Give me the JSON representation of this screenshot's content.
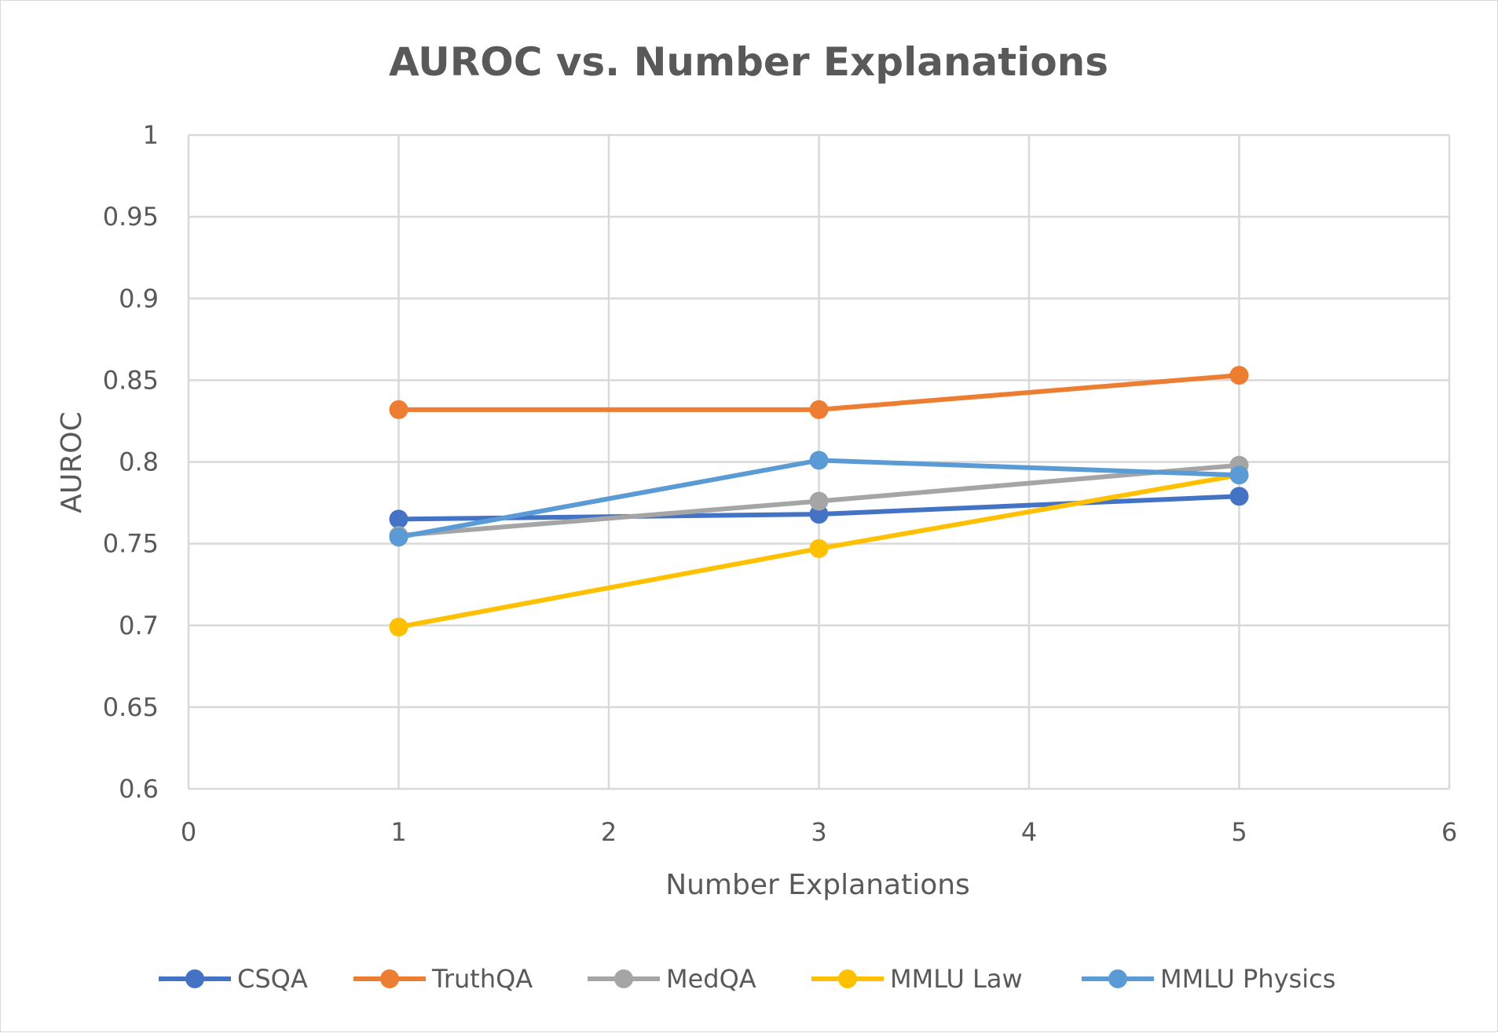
{
  "chart_data": {
    "type": "line",
    "title": "AUROC vs. Number Explanations",
    "xlabel": "Number Explanations",
    "ylabel": "AUROC",
    "xlim": [
      0,
      6
    ],
    "ylim": [
      0.6,
      1.0
    ],
    "x_ticks": [
      "0",
      "1",
      "2",
      "3",
      "4",
      "5",
      "6"
    ],
    "y_ticks": [
      "0.6",
      "0.65",
      "0.7",
      "0.75",
      "0.8",
      "0.85",
      "0.9",
      "0.95",
      "1"
    ],
    "grid": true,
    "legend_position": "bottom",
    "x": [
      1,
      3,
      5
    ],
    "series": [
      {
        "name": "CSQA",
        "color": "#4472c4",
        "values": [
          0.765,
          0.768,
          0.779
        ]
      },
      {
        "name": "TruthQA",
        "color": "#ed7d31",
        "values": [
          0.832,
          0.832,
          0.853
        ]
      },
      {
        "name": "MedQA",
        "color": "#a5a5a5",
        "values": [
          0.755,
          0.776,
          0.798
        ]
      },
      {
        "name": "MMLU Law",
        "color": "#ffc000",
        "values": [
          0.699,
          0.747,
          0.792
        ]
      },
      {
        "name": "MMLU Physics",
        "color": "#5b9bd5",
        "values": [
          0.754,
          0.801,
          0.792
        ]
      }
    ]
  }
}
